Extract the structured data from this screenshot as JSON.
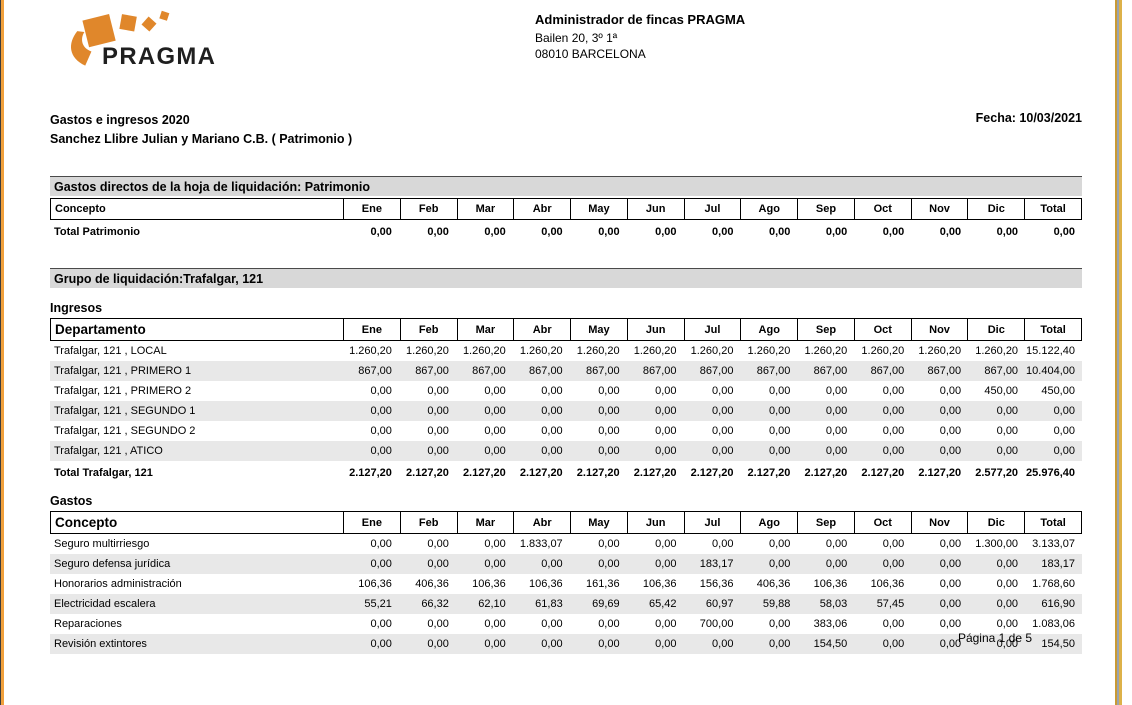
{
  "header": {
    "logo": {
      "brand": "PRAGMA",
      "orange": "#E0872B"
    },
    "company": {
      "name": "Administrador de fincas PRAGMA",
      "address1": "Bailen 20, 3º 1ª",
      "address2": "08010 BARCELONA"
    }
  },
  "report": {
    "title": "Gastos e ingresos 2020",
    "subtitle": "Sanchez Llibre Julian y Mariano C.B. ( Patrimonio )",
    "date": "Fecha: 10/03/2021"
  },
  "columns": [
    "Ene",
    "Feb",
    "Mar",
    "Abr",
    "May",
    "Jun",
    "Jul",
    "Ago",
    "Sep",
    "Oct",
    "Nov",
    "Dic",
    "Total"
  ],
  "section_patrimonio": {
    "bar_title": "Gastos directos de la hoja de liquidación: Patrimonio",
    "table": {
      "label_header": "Concepto",
      "header_style": "small",
      "rows": [],
      "total": {
        "label": "Total Patrimonio",
        "values": [
          "0,00",
          "0,00",
          "0,00",
          "0,00",
          "0,00",
          "0,00",
          "0,00",
          "0,00",
          "0,00",
          "0,00",
          "0,00",
          "0,00",
          "0,00"
        ]
      }
    }
  },
  "section_trafalgar": {
    "bar_title": "Grupo de liquidación:Trafalgar, 121",
    "ingresos": {
      "title": "Ingresos",
      "label_header": "Departamento",
      "header_style": "big",
      "rows": [
        {
          "label": "Trafalgar, 121 , LOCAL",
          "values": [
            "1.260,20",
            "1.260,20",
            "1.260,20",
            "1.260,20",
            "1.260,20",
            "1.260,20",
            "1.260,20",
            "1.260,20",
            "1.260,20",
            "1.260,20",
            "1.260,20",
            "1.260,20",
            "15.122,40"
          ]
        },
        {
          "label": "Trafalgar, 121 , PRIMERO 1",
          "values": [
            "867,00",
            "867,00",
            "867,00",
            "867,00",
            "867,00",
            "867,00",
            "867,00",
            "867,00",
            "867,00",
            "867,00",
            "867,00",
            "867,00",
            "10.404,00"
          ]
        },
        {
          "label": "Trafalgar, 121 , PRIMERO 2",
          "values": [
            "0,00",
            "0,00",
            "0,00",
            "0,00",
            "0,00",
            "0,00",
            "0,00",
            "0,00",
            "0,00",
            "0,00",
            "0,00",
            "450,00",
            "450,00"
          ]
        },
        {
          "label": "Trafalgar, 121 , SEGUNDO 1",
          "values": [
            "0,00",
            "0,00",
            "0,00",
            "0,00",
            "0,00",
            "0,00",
            "0,00",
            "0,00",
            "0,00",
            "0,00",
            "0,00",
            "0,00",
            "0,00"
          ]
        },
        {
          "label": "Trafalgar, 121 , SEGUNDO 2",
          "values": [
            "0,00",
            "0,00",
            "0,00",
            "0,00",
            "0,00",
            "0,00",
            "0,00",
            "0,00",
            "0,00",
            "0,00",
            "0,00",
            "0,00",
            "0,00"
          ]
        },
        {
          "label": "Trafalgar, 121 , ATICO",
          "values": [
            "0,00",
            "0,00",
            "0,00",
            "0,00",
            "0,00",
            "0,00",
            "0,00",
            "0,00",
            "0,00",
            "0,00",
            "0,00",
            "0,00",
            "0,00"
          ]
        }
      ],
      "total": {
        "label": "Total Trafalgar, 121",
        "values": [
          "2.127,20",
          "2.127,20",
          "2.127,20",
          "2.127,20",
          "2.127,20",
          "2.127,20",
          "2.127,20",
          "2.127,20",
          "2.127,20",
          "2.127,20",
          "2.127,20",
          "2.577,20",
          "25.976,40"
        ]
      }
    },
    "gastos": {
      "title": "Gastos",
      "label_header": "Concepto",
      "header_style": "big",
      "rows": [
        {
          "label": "Seguro multirriesgo",
          "values": [
            "0,00",
            "0,00",
            "0,00",
            "1.833,07",
            "0,00",
            "0,00",
            "0,00",
            "0,00",
            "0,00",
            "0,00",
            "0,00",
            "1.300,00",
            "3.133,07"
          ]
        },
        {
          "label": "Seguro defensa jurídica",
          "values": [
            "0,00",
            "0,00",
            "0,00",
            "0,00",
            "0,00",
            "0,00",
            "183,17",
            "0,00",
            "0,00",
            "0,00",
            "0,00",
            "0,00",
            "183,17"
          ]
        },
        {
          "label": "Honorarios administración",
          "values": [
            "106,36",
            "406,36",
            "106,36",
            "106,36",
            "161,36",
            "106,36",
            "156,36",
            "406,36",
            "106,36",
            "106,36",
            "0,00",
            "0,00",
            "1.768,60"
          ]
        },
        {
          "label": "Electricidad escalera",
          "values": [
            "55,21",
            "66,32",
            "62,10",
            "61,83",
            "69,69",
            "65,42",
            "60,97",
            "59,88",
            "58,03",
            "57,45",
            "0,00",
            "0,00",
            "616,90"
          ]
        },
        {
          "label": "Reparaciones",
          "values": [
            "0,00",
            "0,00",
            "0,00",
            "0,00",
            "0,00",
            "0,00",
            "700,00",
            "0,00",
            "383,06",
            "0,00",
            "0,00",
            "0,00",
            "1.083,06"
          ]
        },
        {
          "label": "Revisión extintores",
          "values": [
            "0,00",
            "0,00",
            "0,00",
            "0,00",
            "0,00",
            "0,00",
            "0,00",
            "0,00",
            "154,50",
            "0,00",
            "0,00",
            "0,00",
            "154,50"
          ]
        }
      ],
      "total": null
    }
  },
  "footer": {
    "page": "Página 1 de 5"
  }
}
